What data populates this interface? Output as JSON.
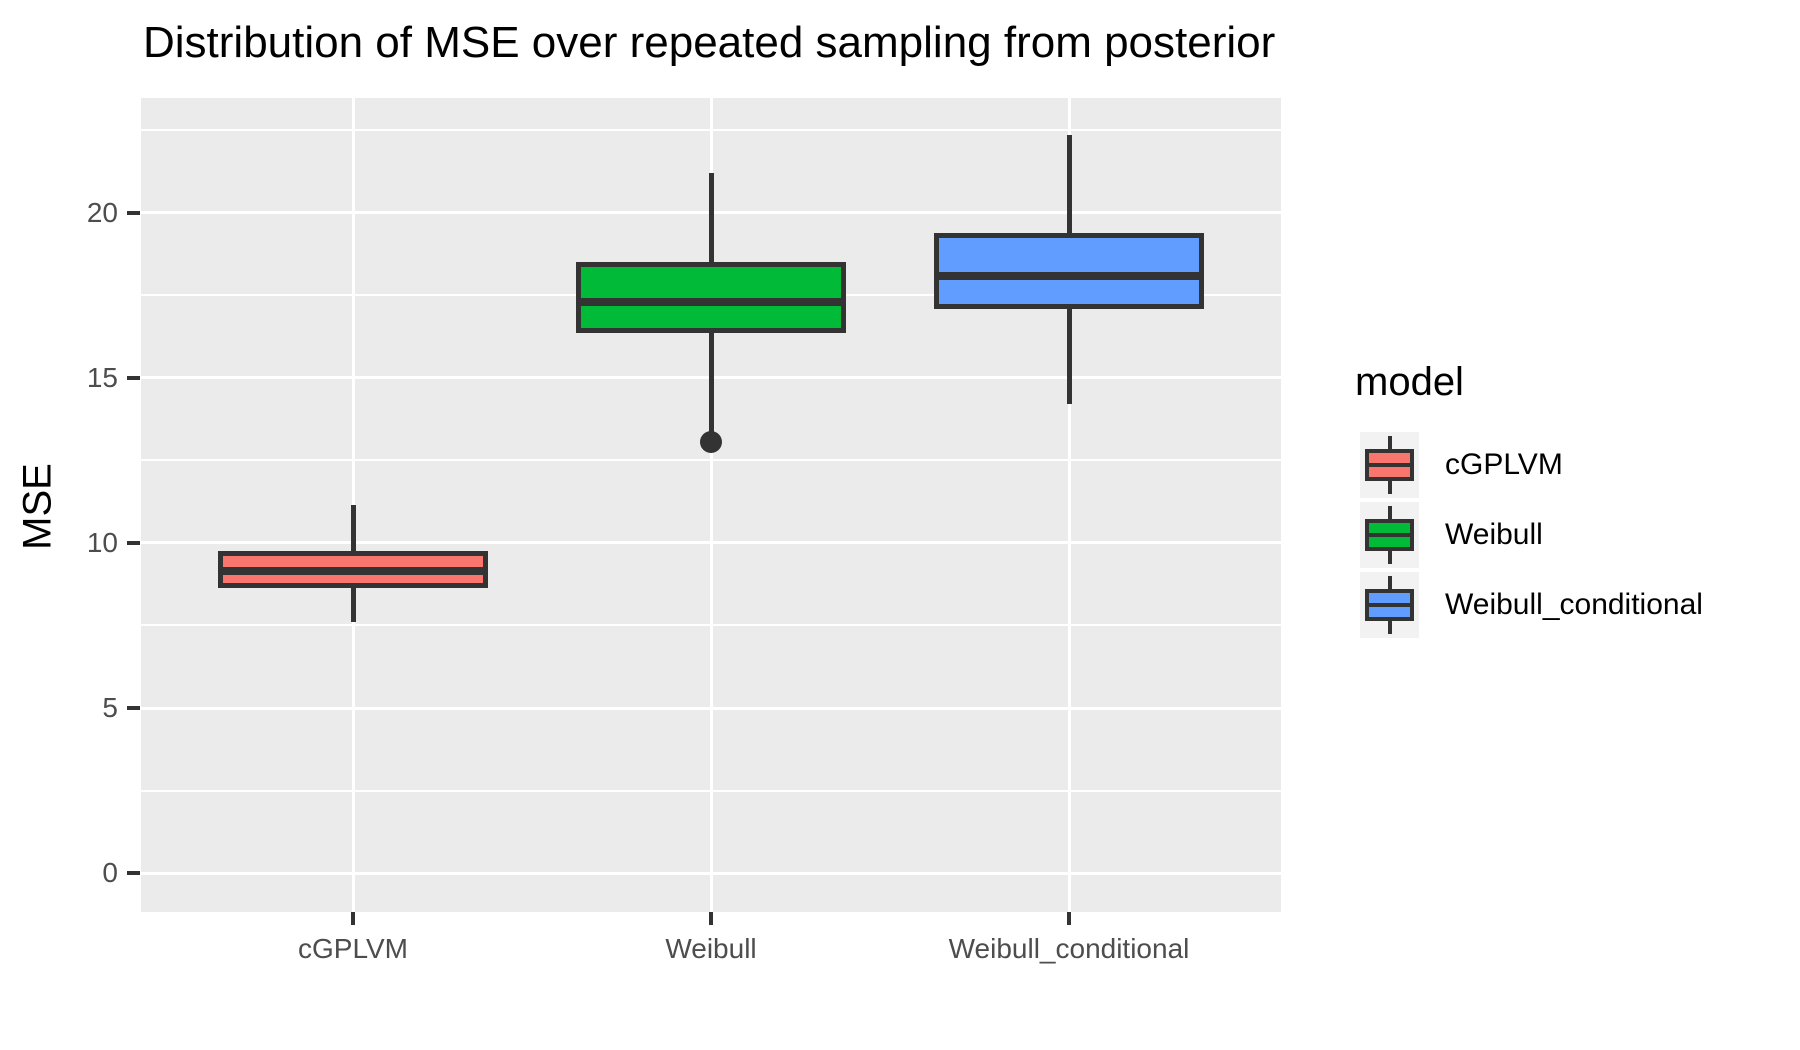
{
  "title": "Distribution of MSE over repeated sampling from posterior",
  "y_axis": {
    "title": "MSE",
    "tick_values": [
      0,
      5,
      10,
      15,
      20
    ]
  },
  "x_axis": {
    "categories": [
      "cGPLVM",
      "Weibull",
      "Weibull_conditional"
    ]
  },
  "legend": {
    "title": "model",
    "entries": [
      {
        "label": "cGPLVM",
        "color": "#F8766D"
      },
      {
        "label": "Weibull",
        "color": "#00BA38"
      },
      {
        "label": "Weibull_conditional",
        "color": "#619CFF"
      }
    ]
  },
  "colors": {
    "panel_bg": "#EBEBEB",
    "grid": "#FFFFFF",
    "box_border": "#333333",
    "axis_text": "#4D4D4D",
    "legend_key_bg": "#F2F2F2"
  },
  "chart_data": {
    "type": "boxplot",
    "title": "Distribution of MSE over repeated sampling from posterior",
    "xlabel": "",
    "ylabel": "MSE",
    "ylim": [
      -1.18,
      23.48
    ],
    "y_major_gridlines": [
      0,
      5,
      10,
      15,
      20
    ],
    "y_minor_gridlines": [
      2.5,
      7.5,
      12.5,
      17.5,
      22.5
    ],
    "grid": true,
    "legend_position": "right",
    "legend_title": "model",
    "categories": [
      "cGPLVM",
      "Weibull",
      "Weibull_conditional"
    ],
    "series": [
      {
        "name": "cGPLVM",
        "color": "#F8766D",
        "whisker_low": 7.6,
        "q1": 8.65,
        "median": 9.15,
        "q3": 9.75,
        "whisker_high": 11.15,
        "outliers": []
      },
      {
        "name": "Weibull",
        "color": "#00BA38",
        "whisker_low": 13.35,
        "q1": 16.35,
        "median": 17.3,
        "q3": 18.5,
        "whisker_high": 21.2,
        "outliers": [
          13.05
        ]
      },
      {
        "name": "Weibull_conditional",
        "color": "#619CFF",
        "whisker_low": 14.2,
        "q1": 17.1,
        "median": 18.1,
        "q3": 19.4,
        "whisker_high": 22.35,
        "outliers": []
      }
    ]
  }
}
